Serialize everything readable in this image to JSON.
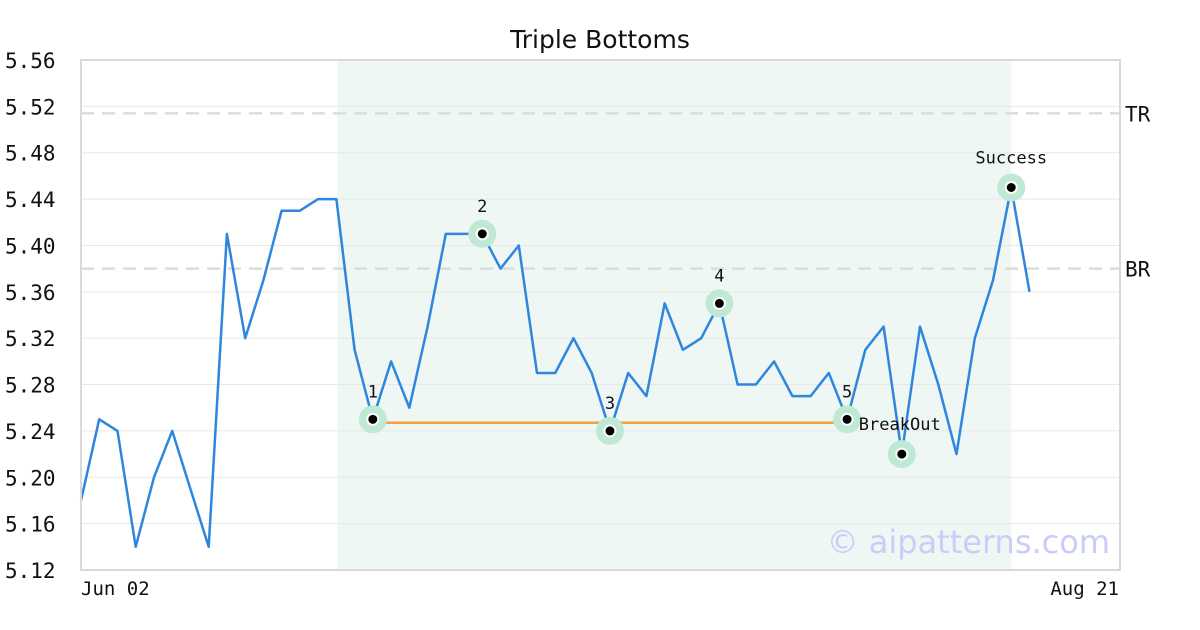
{
  "chart_data": {
    "type": "line",
    "title": "Triple Bottoms",
    "xlabel": "",
    "ylabel": "",
    "ylim": [
      5.12,
      5.56
    ],
    "y_ticks": [
      "5.12",
      "5.16",
      "5.20",
      "5.24",
      "5.28",
      "5.32",
      "5.36",
      "5.40",
      "5.44",
      "5.48",
      "5.52",
      "5.56"
    ],
    "x_tick_labels": [
      "Jun 02",
      "Aug 21"
    ],
    "grid": "horizontal",
    "series": [
      {
        "color": "#2e86de",
        "values": [
          5.18,
          5.25,
          5.24,
          5.14,
          5.2,
          5.24,
          5.19,
          5.14,
          5.41,
          5.32,
          5.37,
          5.43,
          5.43,
          5.44,
          5.44,
          5.31,
          5.25,
          5.3,
          5.26,
          5.33,
          5.41,
          5.41,
          5.41,
          5.38,
          5.4,
          5.29,
          5.29,
          5.32,
          5.29,
          5.24,
          5.29,
          5.27,
          5.35,
          5.31,
          5.32,
          5.35,
          5.28,
          5.28,
          5.3,
          5.27,
          5.27,
          5.29,
          5.25,
          5.31,
          5.33,
          5.22,
          5.33,
          5.28,
          5.22,
          5.32,
          5.37,
          5.45,
          5.36
        ]
      }
    ],
    "pattern_region": {
      "start_index": 14,
      "end_index": 51,
      "color": "#eef7f3"
    },
    "reference_lines": [
      {
        "label": "TR",
        "value": 5.514
      },
      {
        "label": "BR",
        "value": 5.38
      }
    ],
    "support_line": {
      "from_index": 16,
      "to_index": 42,
      "value": 5.247,
      "color": "#f5a142"
    },
    "points": [
      {
        "label": "1",
        "index": 16,
        "value": 5.25
      },
      {
        "label": "2",
        "index": 22,
        "value": 5.41
      },
      {
        "label": "3",
        "index": 29,
        "value": 5.24
      },
      {
        "label": "4",
        "index": 35,
        "value": 5.35
      },
      {
        "label": "5",
        "index": 42,
        "value": 5.25
      },
      {
        "label": "BreakOut",
        "index": 45,
        "value": 5.22
      },
      {
        "label": "Success",
        "index": 51,
        "value": 5.45
      }
    ],
    "watermark": "© aipatterns.com"
  }
}
